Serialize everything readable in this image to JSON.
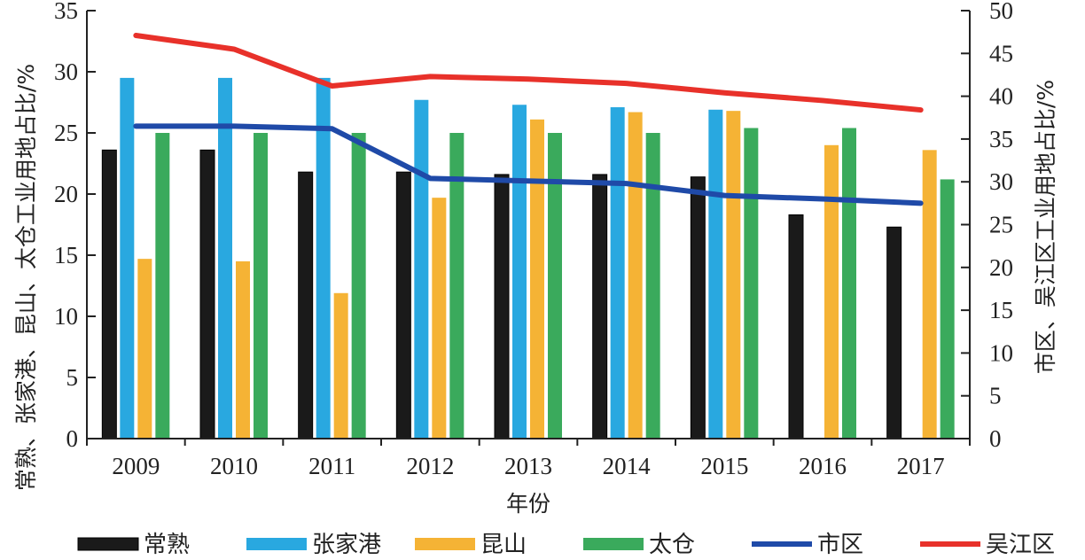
{
  "chart_data": {
    "type": "bar",
    "categories": [
      "2009",
      "2010",
      "2011",
      "2012",
      "2013",
      "2014",
      "2015",
      "2016",
      "2017"
    ],
    "xlabel": "年份",
    "ylabel_left": "常熟、张家港、昆山、太仓工业用地占比/%",
    "ylabel_right": "市区、吴江区工业用地占比/%",
    "ylim_left": [
      0,
      35
    ],
    "ylim_right": [
      0,
      50
    ],
    "yticks_left": [
      "0",
      "5",
      "10",
      "15",
      "20",
      "25",
      "30",
      "35"
    ],
    "yticks_right": [
      "0",
      "5",
      "10",
      "15",
      "20",
      "25",
      "30",
      "35",
      "40",
      "45",
      "50"
    ],
    "grid": false,
    "legend_position": "bottom",
    "bar_series": [
      {
        "name": "常熟",
        "color": "#1a1a1a",
        "values": [
          23.6,
          23.6,
          21.8,
          21.8,
          21.6,
          21.6,
          21.4,
          18.3,
          17.3
        ]
      },
      {
        "name": "张家港",
        "color": "#29a8e0",
        "values": [
          29.5,
          29.5,
          29.5,
          27.7,
          27.3,
          27.1,
          26.9,
          null,
          null
        ]
      },
      {
        "name": "昆山",
        "color": "#f5b335",
        "values": [
          14.7,
          14.5,
          11.9,
          19.7,
          26.1,
          26.7,
          26.8,
          24.0,
          23.6
        ]
      },
      {
        "name": "太仓",
        "color": "#3aaa5c",
        "values": [
          25.0,
          25.0,
          25.0,
          25.0,
          25.0,
          25.0,
          25.4,
          25.4,
          21.2
        ]
      }
    ],
    "line_series": [
      {
        "name": "市区",
        "color": "#1f4aa8",
        "axis": "right",
        "values": [
          36.5,
          36.5,
          36.2,
          30.4,
          30.1,
          29.8,
          28.4,
          28.0,
          27.5
        ]
      },
      {
        "name": "吴江区",
        "color": "#e8312a",
        "axis": "right",
        "values": [
          47.1,
          45.5,
          41.2,
          42.3,
          42.0,
          41.5,
          40.4,
          39.5,
          38.4
        ]
      }
    ]
  }
}
